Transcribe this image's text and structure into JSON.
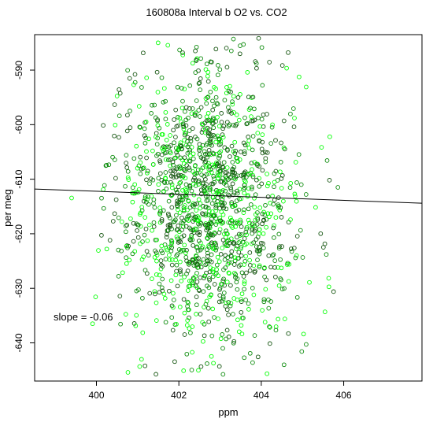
{
  "chart_data": {
    "type": "scatter",
    "title": "160808a   Interval b O2 vs. CO2",
    "xlabel": "ppm",
    "ylabel": "per meg",
    "xlim": [
      398.5,
      407.9
    ],
    "ylim": [
      -647,
      -583.5
    ],
    "x_ticks": [
      400,
      402,
      404,
      406
    ],
    "y_ticks": [
      -590,
      -600,
      -610,
      -620,
      -630,
      -640
    ],
    "x_tick_labels": [
      "400",
      "402",
      "404",
      "406"
    ],
    "y_tick_labels": [
      "-590",
      "-600",
      "-610",
      "-620",
      "-630",
      "-640"
    ],
    "grid": false,
    "annotation": "slope =  -0.06",
    "series": [
      {
        "marker": "open-circle",
        "colors": [
          "#00ff00",
          "#0a8a0a",
          "#14540f"
        ],
        "distribution": {
          "x_center": 402.7,
          "x_sd": 1.05,
          "y_center": -614.5,
          "y_sd": 12.5,
          "approx_points": 1500
        }
      }
    ],
    "regression_line": {
      "slope": -0.06,
      "points": [
        [
          398.5,
          -611.8
        ],
        [
          407.9,
          -614.4
        ]
      ],
      "color": "#000000"
    }
  }
}
